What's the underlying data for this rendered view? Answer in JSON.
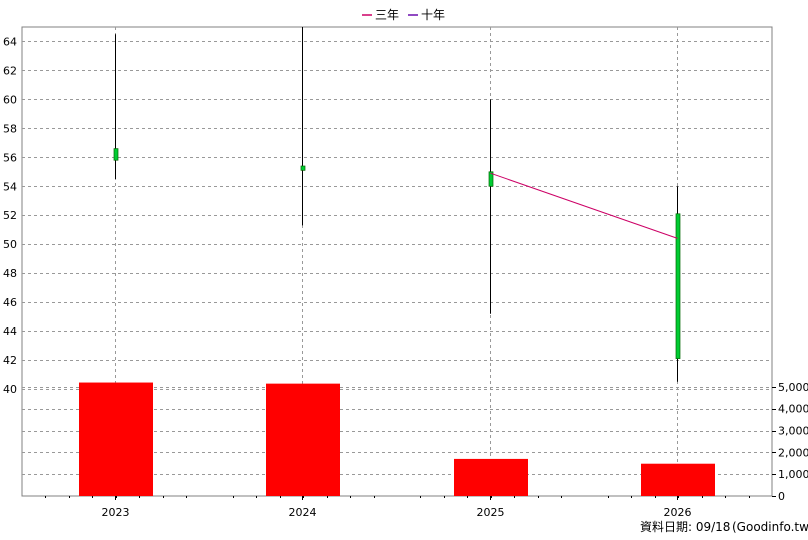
{
  "chart_data": {
    "type": "candlestick",
    "categories": [
      "2023",
      "2024",
      "2025",
      "2026"
    ],
    "price": {
      "ylim": [
        40,
        65
      ],
      "yticks": [
        "40",
        "42",
        "44",
        "46",
        "48",
        "50",
        "52",
        "54",
        "56",
        "58",
        "60",
        "62",
        "64"
      ],
      "candles": [
        {
          "open": 55.8,
          "close": 56.6,
          "high": 64.5,
          "low": 54.5
        },
        {
          "open": 55.1,
          "close": 55.4,
          "high": 65.0,
          "low": 51.3
        },
        {
          "open": 54.0,
          "close": 55.0,
          "high": 60.0,
          "low": 45.2
        },
        {
          "open": 42.1,
          "close": 52.1,
          "high": 54.0,
          "low": 40.5
        }
      ]
    },
    "moving_averages": [
      {
        "name": "三年",
        "color": "#cc0066",
        "values": [
          null,
          null,
          54.9,
          50.4
        ]
      },
      {
        "name": "十年",
        "color": "#6a0dad",
        "values": [
          null,
          null,
          null,
          null
        ]
      }
    ],
    "volume": {
      "ylim": [
        0,
        5500
      ],
      "yticks": [
        "0",
        "1,000",
        "2,000",
        "3,000",
        "4,000",
        "5,000"
      ],
      "values": [
        5200,
        5150,
        1700,
        1480
      ],
      "color": "#ff0000"
    },
    "grid": true,
    "legend_position": "top-center"
  },
  "footer": {
    "date_label": "資料日期: 09/18",
    "source": "(Goodinfo.tw)"
  },
  "colors": {
    "candle_body": "#00cc33",
    "wick": "#000000",
    "grid": "#999999"
  }
}
